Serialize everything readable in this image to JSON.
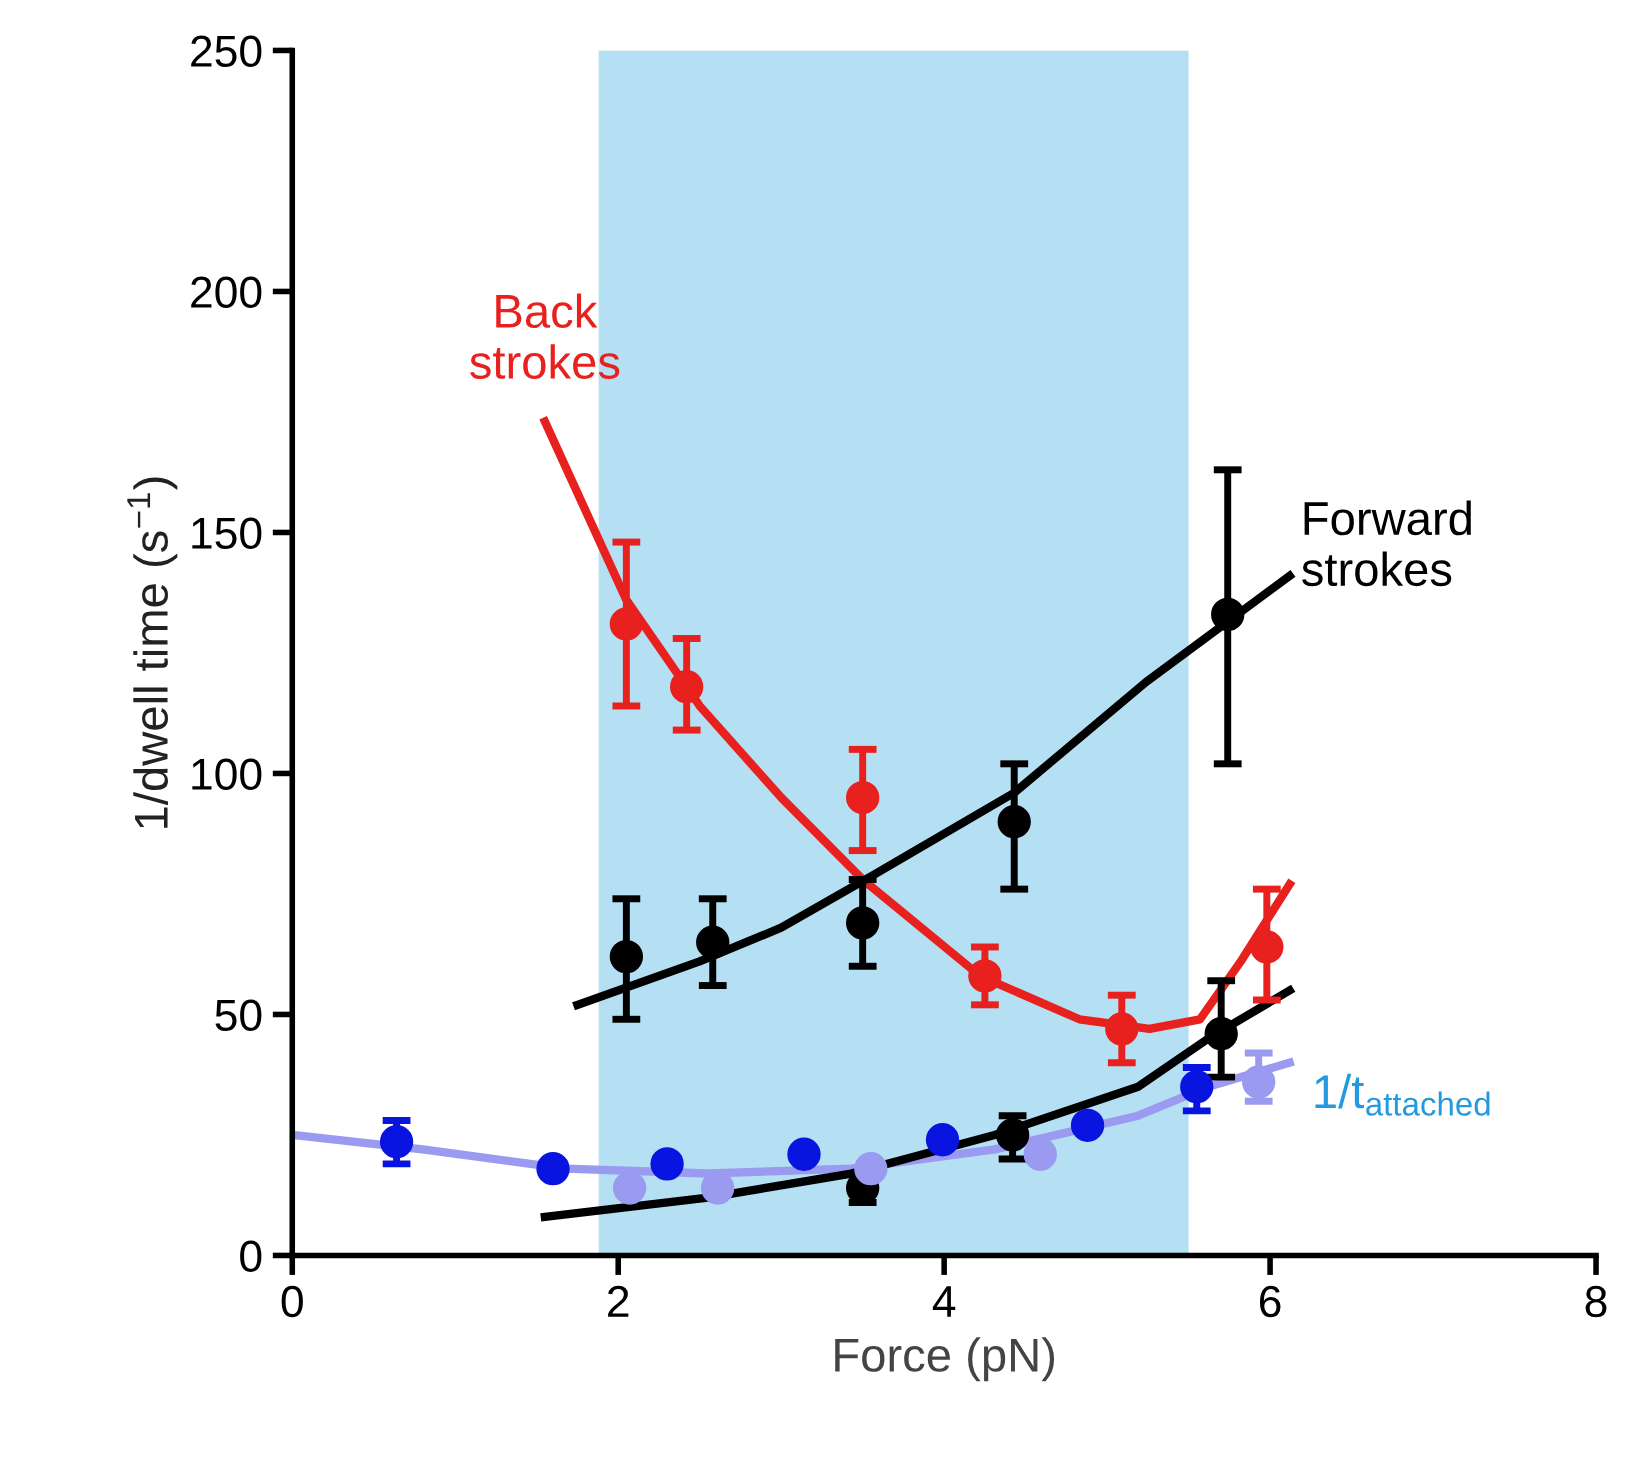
{
  "chart_data": {
    "type": "scatter",
    "xlabel": "Force (pN)",
    "ylabel": "1/dwell time (s$^{−1}$)",
    "xlim": [
      0,
      8
    ],
    "ylim": [
      0,
      250
    ],
    "xticks": [
      0,
      2,
      4,
      6,
      8
    ],
    "yticks": [
      0,
      50,
      100,
      150,
      200,
      250
    ],
    "grid": false,
    "legend": false,
    "bands": [
      {
        "axis": "x",
        "from": 1.88,
        "to": 5.5,
        "color": "#b5dff2"
      }
    ],
    "series": [
      {
        "type": "line",
        "marker": "none",
        "name": "Back\nstrokes",
        "color": "#e8201e",
        "x": [
          1.55,
          2.05,
          2.5,
          3.0,
          3.5,
          4.22,
          4.83,
          5.26,
          5.57,
          5.82,
          6.12
        ],
        "values": [
          173,
          136,
          114,
          95,
          78,
          58,
          49,
          47,
          49,
          61,
          77
        ]
      },
      {
        "type": "line",
        "marker": "none",
        "name": "Forward\nstrokes",
        "color": "#000000",
        "x": [
          1.75,
          2.5,
          3.0,
          3.57,
          4.43,
          5.24,
          6.12
        ],
        "values": [
          52,
          61,
          68,
          79,
          96,
          119,
          141
        ]
      },
      {
        "type": "line",
        "marker": "none",
        "name": "1/t$_{attached}$",
        "color": "#9a9af0",
        "x": [
          0.0,
          0.8,
          1.68,
          2.55,
          3.43,
          4.31,
          5.19,
          5.62,
          6.12
        ],
        "values": [
          25,
          22,
          18,
          17,
          18,
          22,
          29,
          35,
          40
        ]
      },
      {
        "type": "line",
        "marker": "none",
        "color": "#000000",
        "x": [
          1.55,
          2.55,
          3.43,
          4.31,
          5.19,
          5.62,
          6.12
        ],
        "values": [
          8,
          12,
          17,
          25,
          35,
          45,
          55
        ]
      },
      {
        "marker": "circle",
        "color": "#e8201e",
        "x": [
          2.05,
          2.42,
          3.5,
          4.25,
          5.09,
          5.98
        ],
        "values": [
          131,
          118,
          95,
          58,
          47,
          64
        ],
        "errors": [
          [
            114,
            148
          ],
          [
            109,
            128
          ],
          [
            84,
            105
          ],
          [
            52,
            64
          ],
          [
            40,
            54
          ],
          [
            53,
            76
          ]
        ]
      },
      {
        "marker": "circle",
        "color": "#000000",
        "x": [
          2.05,
          2.58,
          3.5,
          4.43,
          5.74
        ],
        "values": [
          62,
          65,
          69,
          90,
          133
        ],
        "errors": [
          [
            49,
            74
          ],
          [
            56,
            74
          ],
          [
            60,
            78
          ],
          [
            76,
            102
          ],
          [
            102,
            163
          ]
        ]
      },
      {
        "marker": "circle",
        "color": "#000000",
        "x": [
          3.5,
          4.42,
          5.7
        ],
        "values": [
          14,
          25,
          46
        ],
        "errors": [
          [
            11,
            17
          ],
          [
            20,
            29
          ],
          [
            37,
            57
          ]
        ]
      },
      {
        "marker": "circle",
        "color": "#0a14e0",
        "x": [
          0.64,
          1.6,
          2.3,
          3.14,
          3.99,
          4.88,
          5.55
        ],
        "values": [
          23.6,
          18,
          19,
          21,
          24,
          27,
          35
        ],
        "errors": [
          [
            19,
            28
          ],
          null,
          null,
          null,
          null,
          null,
          [
            30,
            39
          ]
        ]
      },
      {
        "marker": "circle",
        "color": "#9a9af0",
        "x": [
          2.07,
          2.61,
          3.55,
          4.59,
          5.93
        ],
        "values": [
          14,
          14,
          18,
          21,
          36
        ],
        "errors": [
          null,
          null,
          null,
          null,
          [
            32,
            42
          ]
        ]
      }
    ]
  }
}
